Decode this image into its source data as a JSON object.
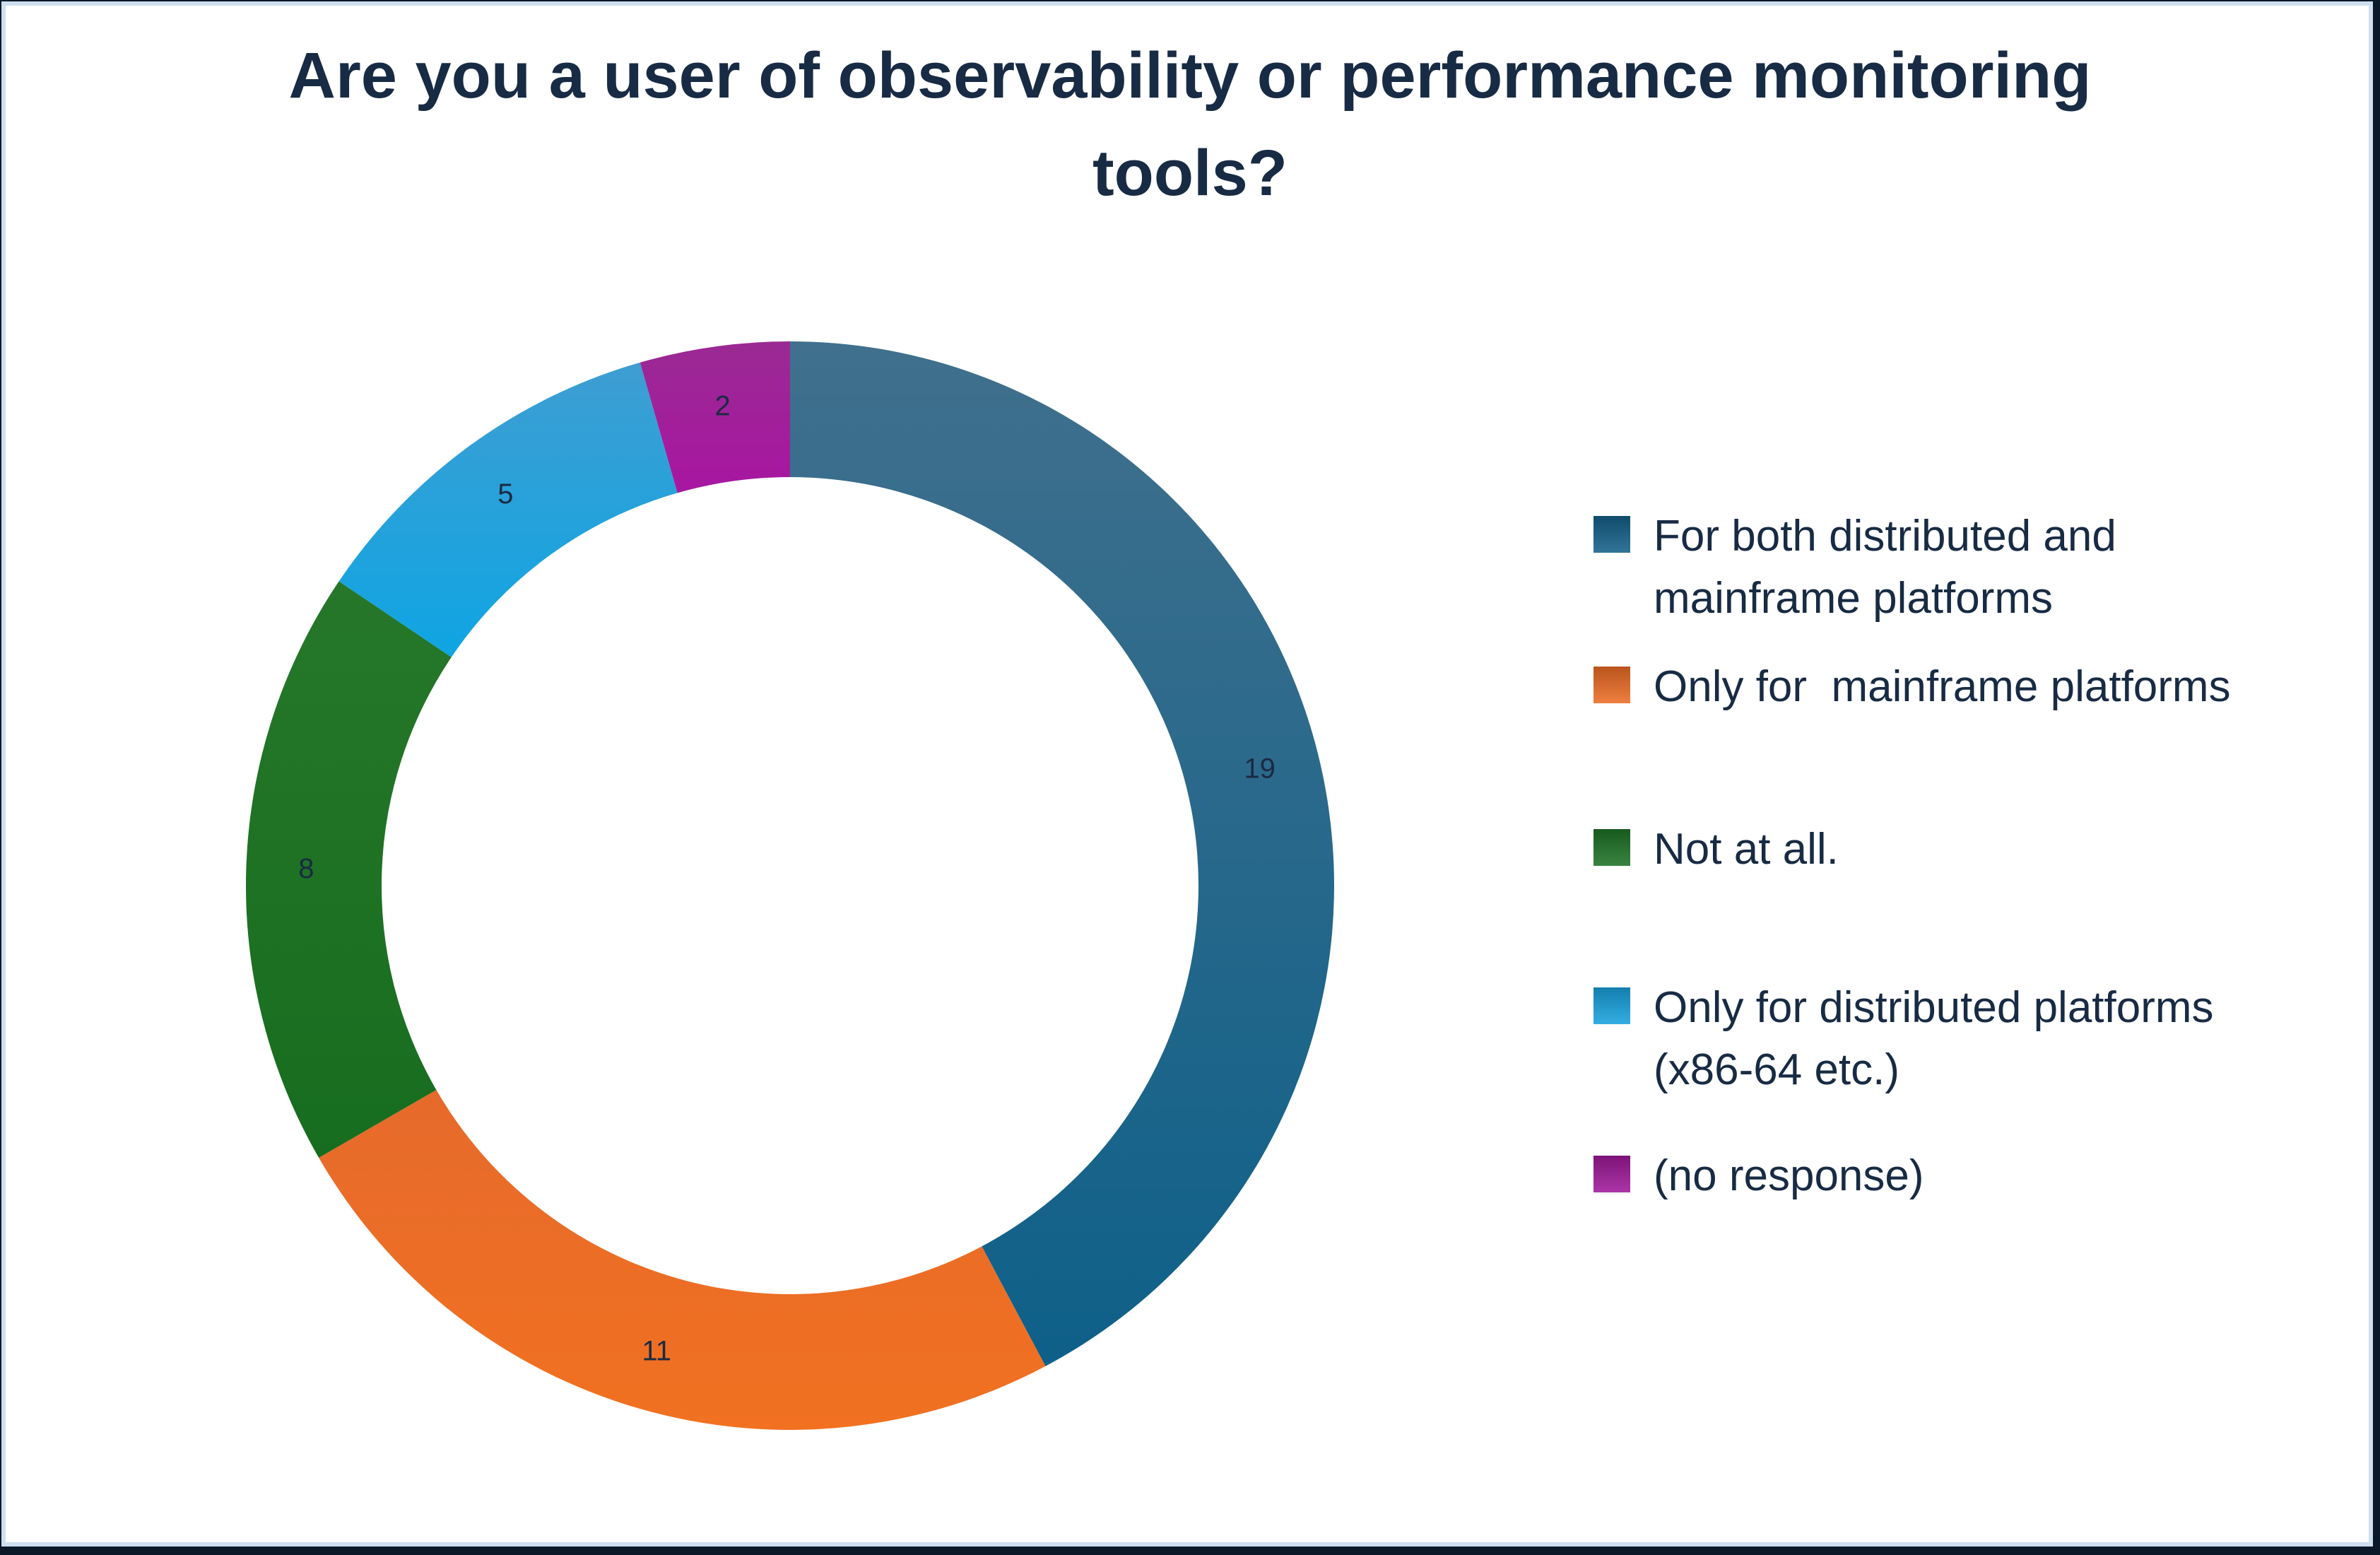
{
  "frame": {
    "outer_color": "#0A1828",
    "inner_border_color": "#CEDFF1",
    "canvas_color": "#FFFFFF"
  },
  "title": {
    "lines": [
      "Are you a user of observability or performance monitoring",
      "tools?"
    ],
    "color": "#182B44"
  },
  "chart_data": {
    "type": "pie",
    "subtype": "donut",
    "title": "Are you a user of observability or performance monitoring tools?",
    "total": 45,
    "direction": "clockwise",
    "start_angle_deg": 0,
    "legend_position": "right",
    "data_labels": "values",
    "label_color": "#1B2A41",
    "segments": [
      {
        "label": "For both distributed and mainframe platforms",
        "legend_lines": [
          "For both distributed and",
          "mainframe platforms"
        ],
        "value": 19,
        "color": "#15618A",
        "gradient_top": "#40708D",
        "gradient_bottom": "#0E6089"
      },
      {
        "label": "Only for  mainframe platforms",
        "legend_lines": [
          "Only for  mainframe platforms"
        ],
        "value": 11,
        "color": "#EC6D25",
        "gradient_top": "#E66A2B",
        "gradient_bottom": "#F17121"
      },
      {
        "label": "Not at all.",
        "legend_lines": [
          "Not at all."
        ],
        "value": 8,
        "color": "#1E7326",
        "gradient_top": "#267729",
        "gradient_bottom": "#176D1F"
      },
      {
        "label": "Only for distributed platforms (x86-64 etc.)",
        "legend_lines": [
          "Only for distributed platforms",
          "(x86-64 etc.)"
        ],
        "value": 5,
        "color": "#18A2DE",
        "gradient_top": "#3E9ED2",
        "gradient_bottom": "#0FA5E3"
      },
      {
        "label": "(no response)",
        "legend_lines": [
          "(no response)"
        ],
        "value": 2,
        "color": "#A0199A",
        "gradient_top": "#9A2A93",
        "gradient_bottom": "#A816A1"
      }
    ]
  }
}
